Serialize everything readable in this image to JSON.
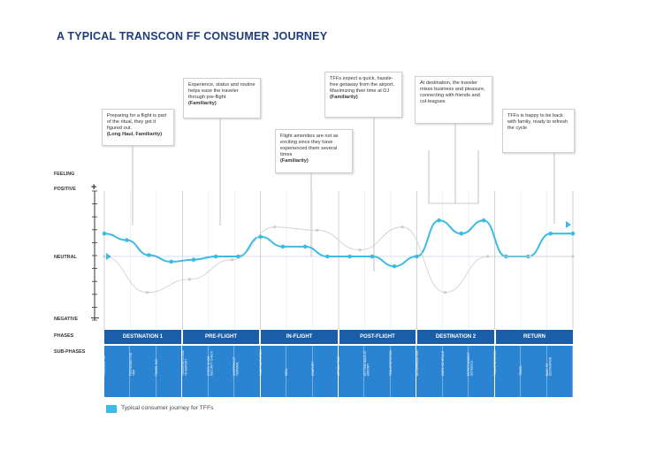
{
  "title": "A TYPICAL TRANSCON FF CONSUMER JOURNEY",
  "axis": {
    "feeling": "FEELING",
    "positive": "POSITIVE",
    "neutral": "NEUTRAL",
    "negative": "NEGATIVE",
    "plus": "+",
    "minus": "—"
  },
  "row_labels": {
    "phases": "PHASES",
    "subphases": "SUB-PHASES"
  },
  "callouts": [
    {
      "text": "Preparing for a flight is part of the ritual, they got it figured out.",
      "source": "(Long Haul, Familiarity)"
    },
    {
      "text": "Experience, status and routine helps ease the traveler through pre-flight",
      "source": "(Familiarity)"
    },
    {
      "text": "Flight amenities are not as exciting since they have experienced them several times",
      "source": "(Familiarity)"
    },
    {
      "text": "TFFs expect a quick, hassle-free getaway from the airport. Maximizing their time at DJ",
      "source": "(Familiarity)"
    },
    {
      "text": "At destination, the traveler mixes business and pleasure, connecting with friends and col-leagues",
      "source": ""
    },
    {
      "text": "TFFs is happy to be back with family, ready to refresh the cycle",
      "source": ""
    }
  ],
  "phases": [
    "DESTINATION 1",
    "PRE-FLIGHT",
    "IN-FLIGHT",
    "POST-FLIGHT",
    "DESTINATION 2",
    "RETURN"
  ],
  "subphases": [
    "PLANNING TRIP",
    "PREPARING FOR TRIP",
    "TRAVEL DAY",
    "TRANSPORTATION TO AIRPORT",
    "CHECK IN AND SECURITY CHECK",
    "SHOPPING AT TERMINAL",
    "FLIGHT ACTIVITIES",
    "MEAL",
    "COMFORT",
    "ARRIVAL TIME",
    "GETTING BAGS AT AIRPORT",
    "TRANSPORTATION",
    "ACCOMMODATION",
    "WORK SCHEDULE",
    "ENTERTAINMENT SCHEDULE",
    "TRANSPORTATION",
    "TRAVEL",
    "BACK TO DESTINATION"
  ],
  "legend": {
    "label": "Typical consumer journey for TFFs",
    "color": "#3cbce4"
  },
  "chart_data": {
    "type": "line",
    "ylim": [
      -1,
      1
    ],
    "series": [
      {
        "values": [
          0.35,
          0.25,
          0.02,
          -0.08,
          -0.05,
          0.0,
          0.0,
          0.3,
          0.15,
          0.15,
          0.0,
          0.0,
          0.0,
          -0.15,
          0.0,
          0.55,
          0.35,
          0.55,
          0.0,
          0.0,
          0.35,
          0.35
        ],
        "color": "#3cbce4"
      },
      {
        "values": [
          0.0,
          -0.55,
          -0.35,
          -0.05,
          0.45,
          0.4,
          0.1,
          0.45,
          -0.55,
          0.0,
          0.0,
          0.0
        ],
        "color": "#cccccc"
      }
    ]
  }
}
